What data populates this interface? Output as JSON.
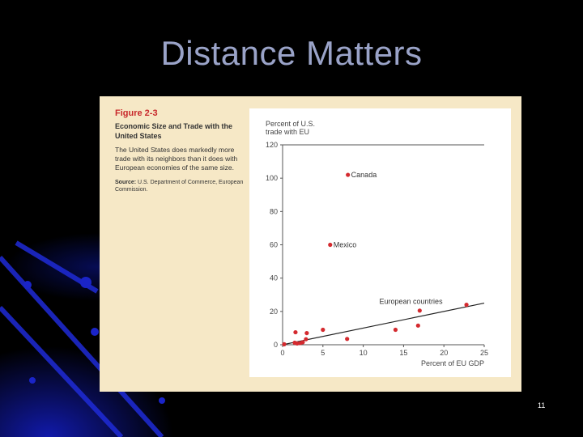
{
  "slide": {
    "title": "Distance Matters",
    "page_number": "11"
  },
  "figure": {
    "label": "Figure 2-3",
    "title": "Economic Size and Trade with the United States",
    "description": "The United States does markedly more trade with its neighbors than it does with European economies of the same size.",
    "source_label": "Source:",
    "source_text": " U.S. Department of Commerce, European Commission."
  },
  "chart_data": {
    "type": "scatter",
    "xlabel": "Percent of EU GDP",
    "ylabel": "Percent of U.S. trade with EU",
    "xlim": [
      0,
      25
    ],
    "ylim": [
      0,
      120
    ],
    "x_ticks": [
      0,
      5,
      10,
      15,
      20,
      25
    ],
    "y_ticks": [
      0,
      20,
      40,
      60,
      80,
      100,
      120
    ],
    "grid": false,
    "point_color": "#d42a2f",
    "trendline": {
      "x": [
        0,
        25
      ],
      "y": [
        0,
        25
      ],
      "label": "European countries"
    },
    "points": [
      {
        "x": 8.1,
        "y": 102,
        "label": "Canada"
      },
      {
        "x": 5.9,
        "y": 60,
        "label": "Mexico"
      },
      {
        "x": 0.2,
        "y": 0.3,
        "label": ""
      },
      {
        "x": 1.5,
        "y": 1.2,
        "label": ""
      },
      {
        "x": 1.8,
        "y": 0.8,
        "label": ""
      },
      {
        "x": 2.2,
        "y": 1.0,
        "label": ""
      },
      {
        "x": 2.5,
        "y": 1.5,
        "label": ""
      },
      {
        "x": 2.9,
        "y": 3.3,
        "label": ""
      },
      {
        "x": 1.6,
        "y": 7.5,
        "label": ""
      },
      {
        "x": 3.0,
        "y": 7.0,
        "label": ""
      },
      {
        "x": 5.0,
        "y": 9.0,
        "label": ""
      },
      {
        "x": 8.0,
        "y": 3.5,
        "label": ""
      },
      {
        "x": 14.0,
        "y": 9.0,
        "label": ""
      },
      {
        "x": 16.8,
        "y": 11.5,
        "label": ""
      },
      {
        "x": 17.0,
        "y": 20.5,
        "label": ""
      },
      {
        "x": 22.8,
        "y": 24.0,
        "label": ""
      }
    ]
  }
}
